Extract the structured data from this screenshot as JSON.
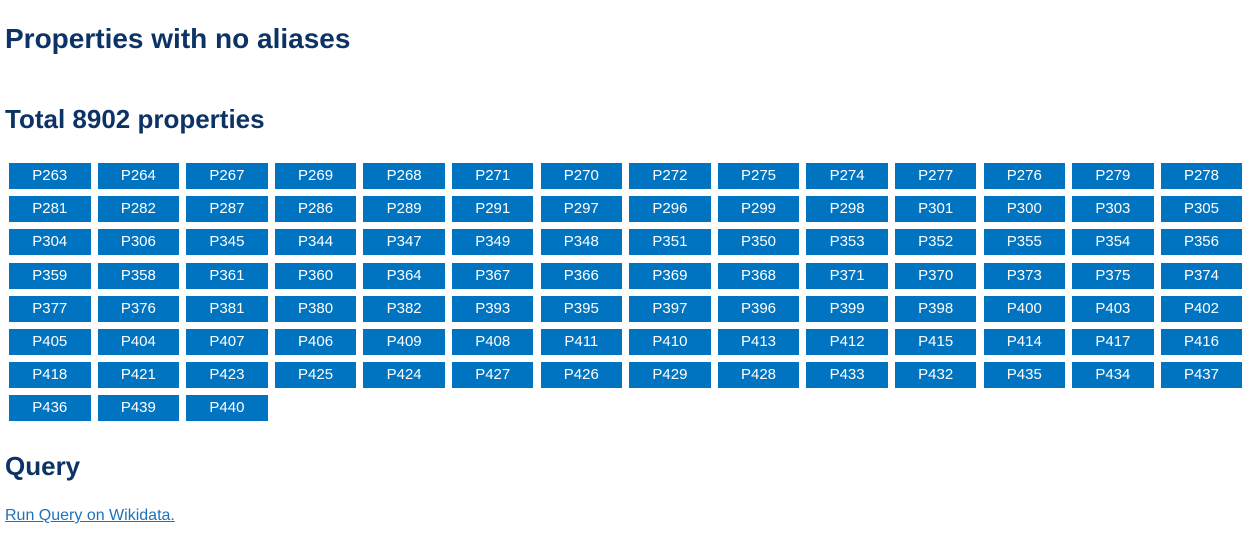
{
  "title": "Properties with no aliases",
  "total_heading": "Total 8902 properties",
  "colors": {
    "heading": "#0d3366",
    "chip_background": "#0074c1",
    "chip_text": "#ffffff",
    "link": "#1e72b8"
  },
  "properties": [
    "P263",
    "P264",
    "P267",
    "P269",
    "P268",
    "P271",
    "P270",
    "P272",
    "P275",
    "P274",
    "P277",
    "P276",
    "P279",
    "P278",
    "P281",
    "P282",
    "P287",
    "P286",
    "P289",
    "P291",
    "P297",
    "P296",
    "P299",
    "P298",
    "P301",
    "P300",
    "P303",
    "P305",
    "P304",
    "P306",
    "P345",
    "P344",
    "P347",
    "P349",
    "P348",
    "P351",
    "P350",
    "P353",
    "P352",
    "P355",
    "P354",
    "P356",
    "P359",
    "P358",
    "P361",
    "P360",
    "P364",
    "P367",
    "P366",
    "P369",
    "P368",
    "P371",
    "P370",
    "P373",
    "P375",
    "P374",
    "P377",
    "P376",
    "P381",
    "P380",
    "P382",
    "P393",
    "P395",
    "P397",
    "P396",
    "P399",
    "P398",
    "P400",
    "P403",
    "P402",
    "P405",
    "P404",
    "P407",
    "P406",
    "P409",
    "P408",
    "P411",
    "P410",
    "P413",
    "P412",
    "P415",
    "P414",
    "P417",
    "P416",
    "P418",
    "P421",
    "P423",
    "P425",
    "P424",
    "P427",
    "P426",
    "P429",
    "P428",
    "P433",
    "P432",
    "P435",
    "P434",
    "P437",
    "P436",
    "P439",
    "P440"
  ],
  "query_heading": "Query",
  "query_link": "Run Query on Wikidata."
}
